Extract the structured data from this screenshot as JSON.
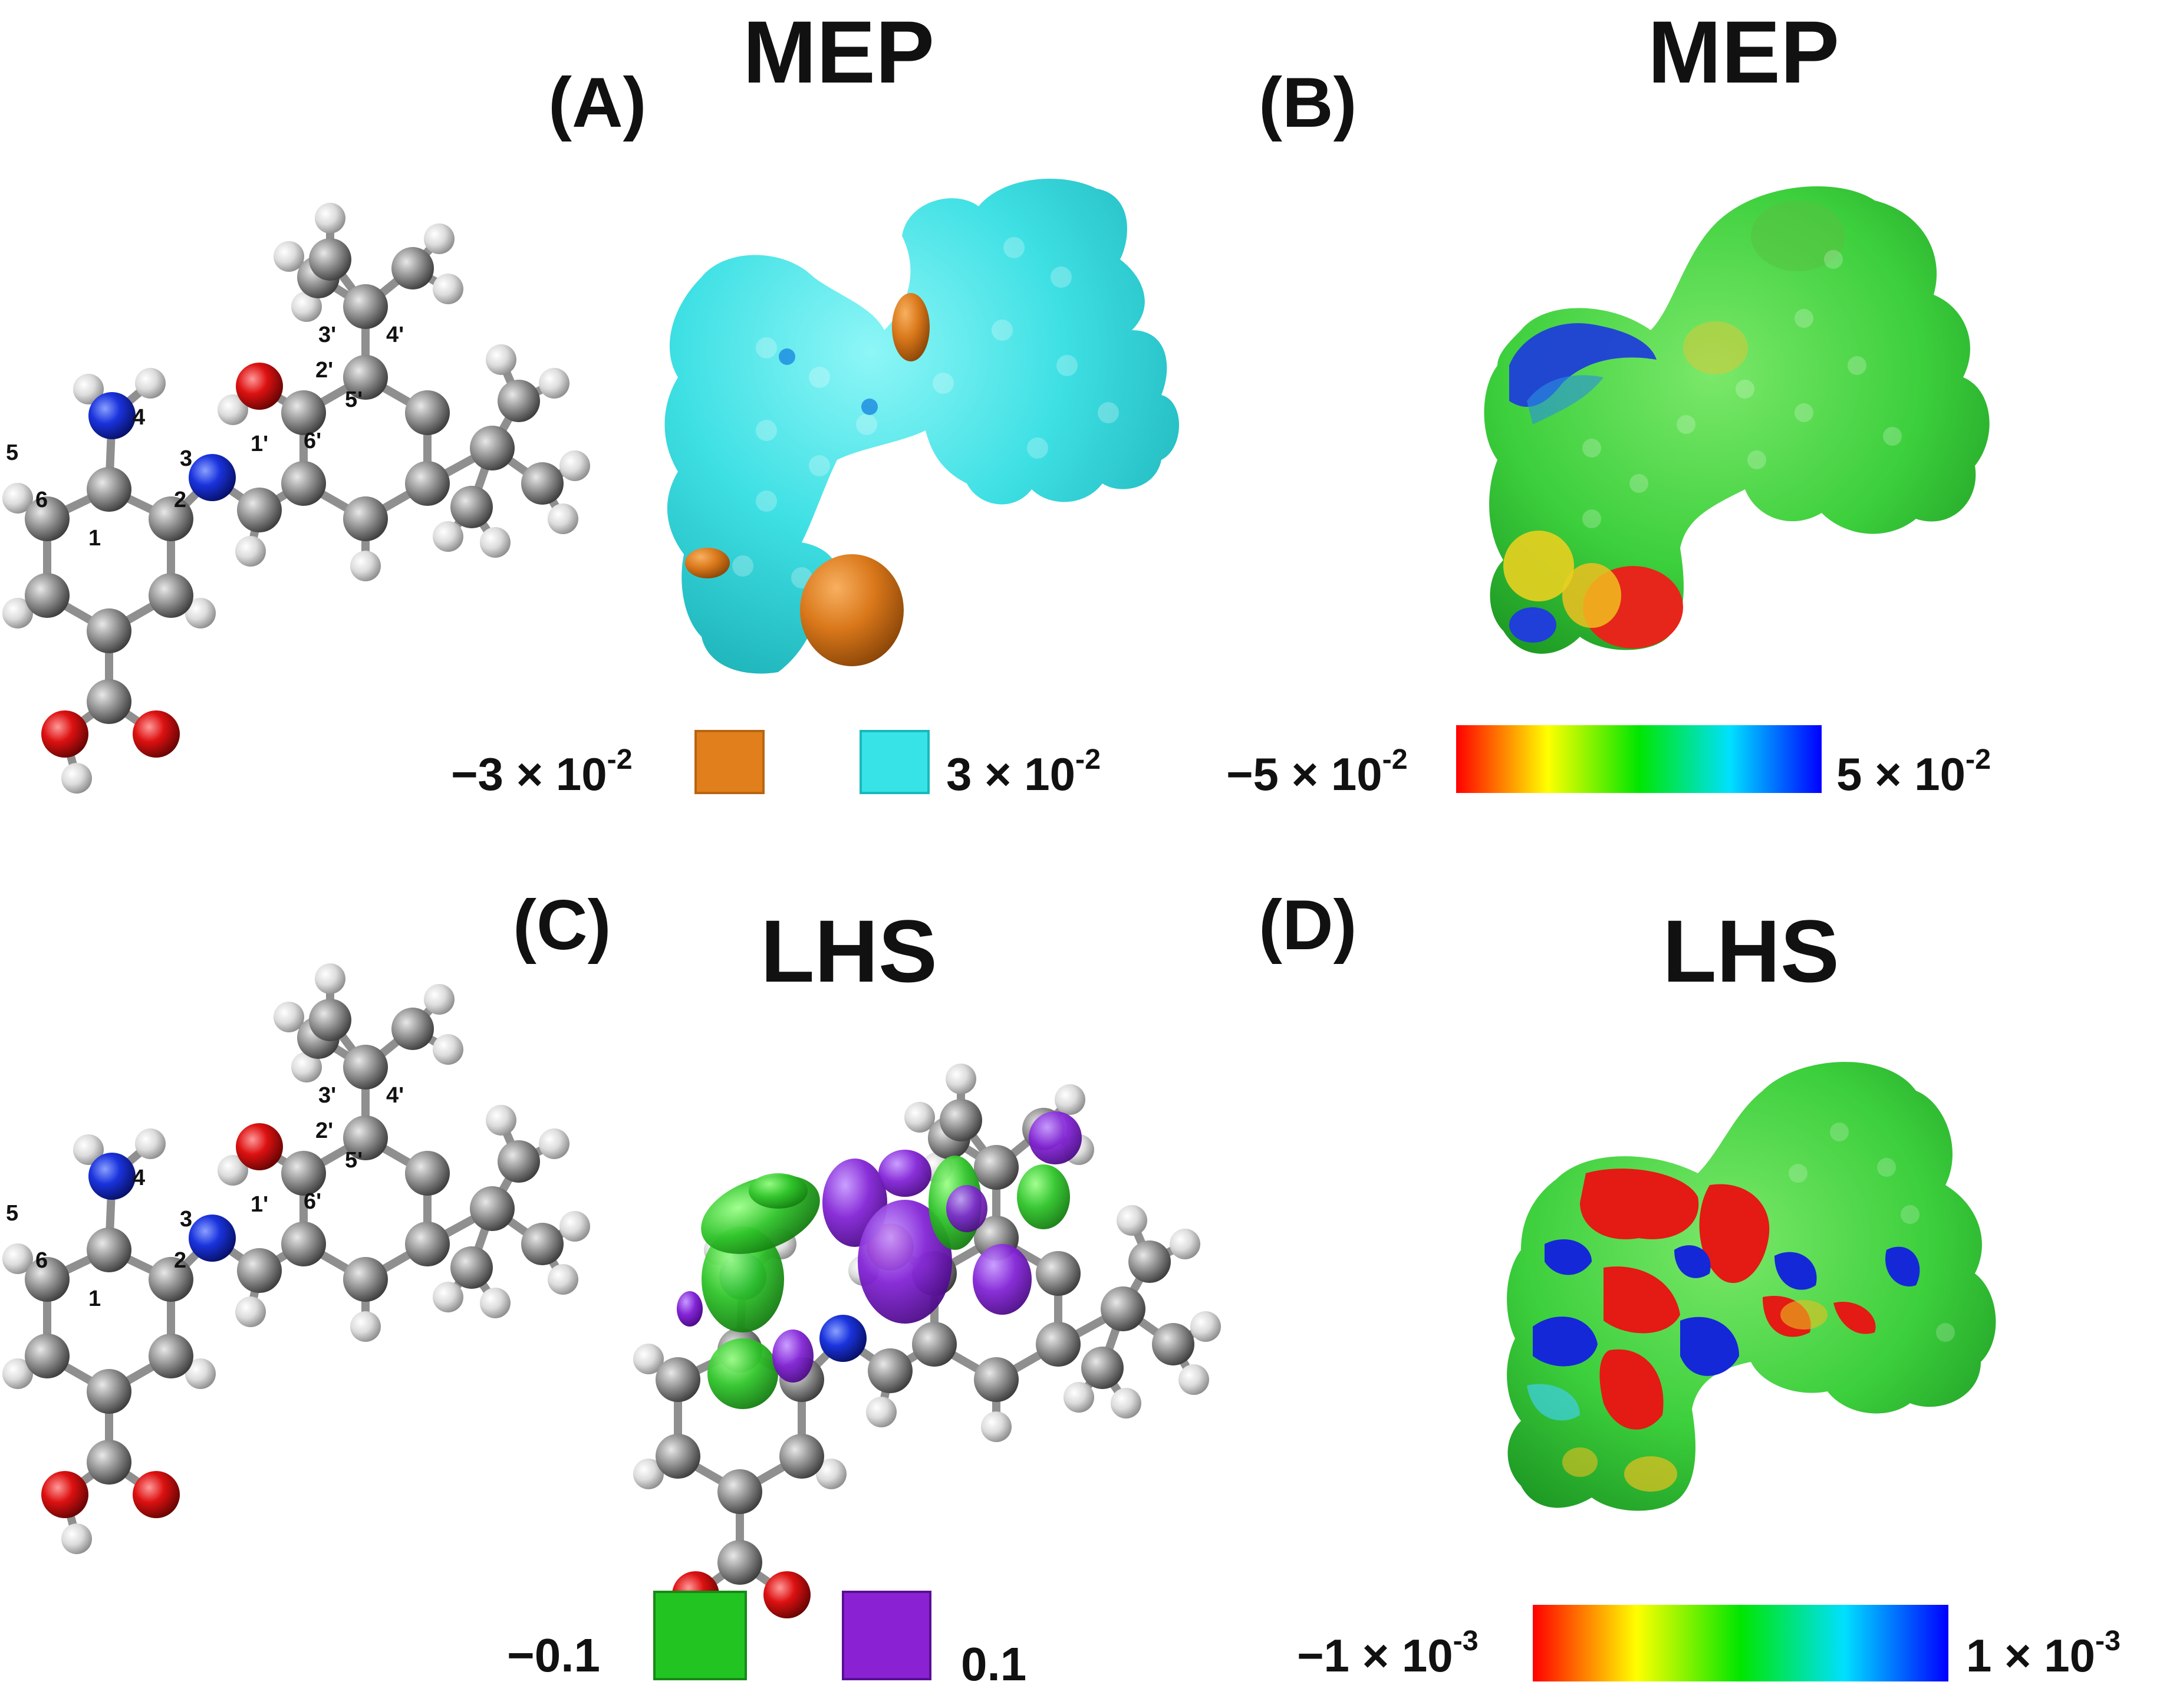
{
  "panels": [
    {
      "id": "A",
      "label": "(A)",
      "title": "MEP",
      "type": "isosurface",
      "legend": [
        {
          "value": "−3 × 10",
          "exp": "-2",
          "color": "#e07f1c"
        },
        {
          "value": "3 × 10",
          "exp": "-2",
          "color": "#37e3e6"
        }
      ]
    },
    {
      "id": "B",
      "label": "(B)",
      "title": "MEP",
      "type": "mapped-surface",
      "colorbar": {
        "min": "−5 × 10",
        "min_exp": "-2",
        "max": "5 × 10",
        "max_exp": "-2",
        "colors": [
          "#ff0000",
          "#ffff00",
          "#00e600",
          "#00e0ff",
          "#0000ff"
        ]
      }
    },
    {
      "id": "C",
      "label": "(C)",
      "title": "LHS",
      "type": "isosurface",
      "legend": [
        {
          "value": "−0.1",
          "color": "#22c422"
        },
        {
          "value": "0.1",
          "color": "#8a22d4"
        }
      ]
    },
    {
      "id": "D",
      "label": "(D)",
      "title": "LHS",
      "type": "mapped-surface",
      "colorbar": {
        "min": "−1 × 10",
        "min_exp": "-3",
        "max": "1 × 10",
        "max_exp": "-3",
        "colors": [
          "#ff0000",
          "#ffff00",
          "#00e600",
          "#00e0ff",
          "#0000ff"
        ]
      }
    }
  ],
  "atom_labels": [
    "1",
    "2",
    "3",
    "4",
    "5",
    "6",
    "1'",
    "2'",
    "3'",
    "4'",
    "5'",
    "6'"
  ],
  "colors": {
    "carbon": "#8a8a8a",
    "hydrogen": "#e6e6e6",
    "nitrogen": "#1133dd",
    "oxygen": "#dd1111",
    "mep_positive": "#37e3e6",
    "mep_negative": "#e07f1c",
    "lhs_negative": "#22c422",
    "lhs_positive": "#8a22d4"
  }
}
